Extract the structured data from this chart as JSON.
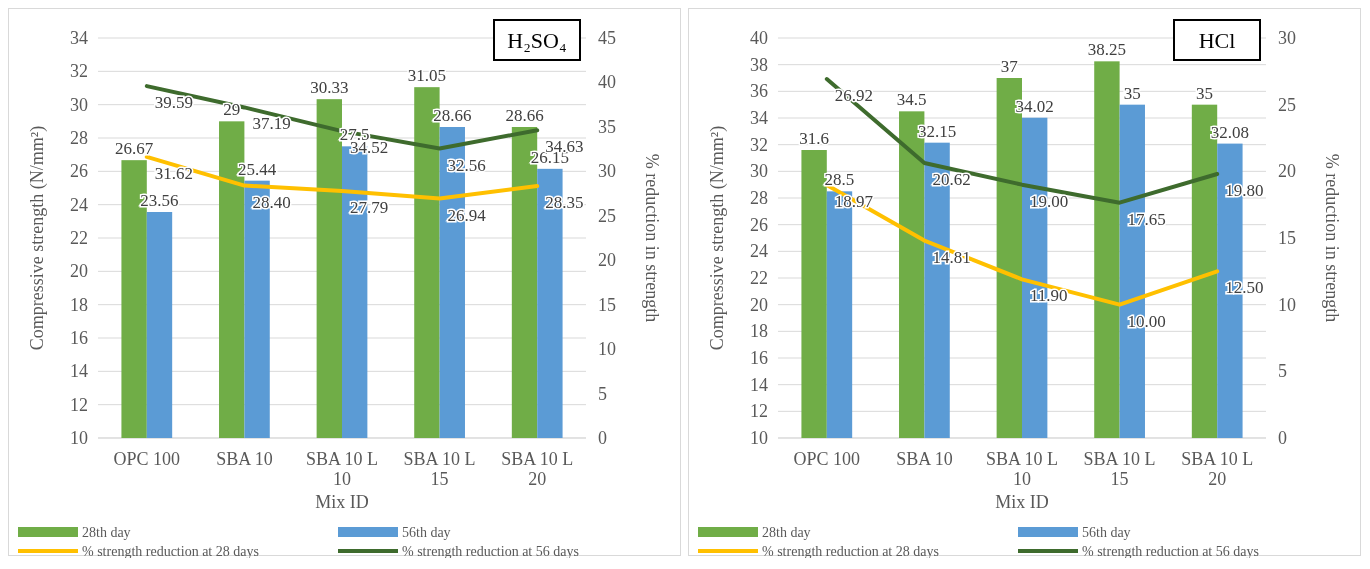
{
  "chart_data": [
    {
      "type": "bar",
      "title": "H₂SO₄",
      "xlabel": "Mix ID",
      "ylabel": "Compressive strength (N/mm²)",
      "y2label": "% reduction in strength",
      "categories": [
        "OPC 100",
        "SBA 10",
        "SBA 10 L 10",
        "SBA 10 L 15",
        "SBA 10 L 20"
      ],
      "series": [
        {
          "name": "28th day",
          "color": "#70ad47",
          "values": [
            26.67,
            29,
            30.33,
            31.05,
            28.66
          ],
          "value_labels": [
            "26.67",
            "29",
            "30.33",
            "31.05",
            "28.66"
          ]
        },
        {
          "name": "56th day",
          "color": "#5b9bd5",
          "values": [
            23.56,
            25.44,
            27.5,
            28.66,
            26.15
          ],
          "value_labels": [
            "23.56",
            "25.44",
            "27.5",
            "28.66",
            "26.15"
          ]
        },
        {
          "name": "% strength reduction at 28 days",
          "type": "line",
          "axis": "y2",
          "color": "#ffc000",
          "values": [
            31.62,
            28.4,
            27.79,
            26.94,
            28.35
          ],
          "value_labels": [
            "31.62",
            "28.40",
            "27.79",
            "26.94",
            "28.35"
          ]
        },
        {
          "name": "% strength reduction at 56 days",
          "type": "line",
          "axis": "y2",
          "color": "#3e6b2d",
          "values": [
            39.59,
            37.19,
            34.52,
            32.56,
            34.63
          ],
          "value_labels": [
            "39.59",
            "37.19",
            "34.52",
            "32.56",
            "34.63"
          ]
        }
      ],
      "ylim": [
        10,
        34
      ],
      "yticks": [
        10,
        12,
        14,
        16,
        18,
        20,
        22,
        24,
        26,
        28,
        30,
        32,
        34
      ],
      "y2lim": [
        0,
        45
      ],
      "y2ticks": [
        0,
        5,
        10,
        15,
        20,
        25,
        30,
        35,
        40,
        45
      ],
      "grid": "y",
      "legend": "bottom",
      "marker": "none"
    },
    {
      "type": "bar",
      "title": "HCl",
      "xlabel": "Mix ID",
      "ylabel": "Compressive strength (N/mm²)",
      "y2label": "% reduction in strength",
      "categories": [
        "OPC 100",
        "SBA 10",
        "SBA 10 L 10",
        "SBA 10 L 15",
        "SBA 10 L 20"
      ],
      "series": [
        {
          "name": "28th day",
          "color": "#70ad47",
          "values": [
            31.6,
            34.5,
            37,
            38.25,
            35
          ],
          "value_labels": [
            "31.6",
            "34.5",
            "37",
            "38.25",
            "35"
          ]
        },
        {
          "name": "56th day",
          "color": "#5b9bd5",
          "values": [
            28.5,
            32.15,
            34.02,
            35,
            32.08
          ],
          "value_labels": [
            "28.5",
            "32.15",
            "34.02",
            "35",
            "32.08"
          ]
        },
        {
          "name": "% strength reduction at 28 days",
          "type": "line",
          "axis": "y2",
          "color": "#ffc000",
          "values": [
            18.97,
            14.81,
            11.9,
            10,
            12.5
          ],
          "value_labels": [
            "18.97",
            "14.81",
            "11.90",
            "10.00",
            "12.50"
          ]
        },
        {
          "name": "% strength reduction at 56 days",
          "type": "line",
          "axis": "y2",
          "color": "#3e6b2d",
          "values": [
            26.92,
            20.62,
            19,
            17.65,
            19.8
          ],
          "value_labels": [
            "26.92",
            "20.62",
            "19.00",
            "17.65",
            "19.80"
          ]
        }
      ],
      "ylim": [
        10,
        40
      ],
      "yticks": [
        10,
        12,
        14,
        16,
        18,
        20,
        22,
        24,
        26,
        28,
        30,
        32,
        34,
        36,
        38,
        40
      ],
      "y2lim": [
        0,
        30
      ],
      "y2ticks": [
        0,
        5,
        10,
        15,
        20,
        25,
        30
      ],
      "grid": "y",
      "legend": "bottom",
      "marker": "none"
    }
  ]
}
